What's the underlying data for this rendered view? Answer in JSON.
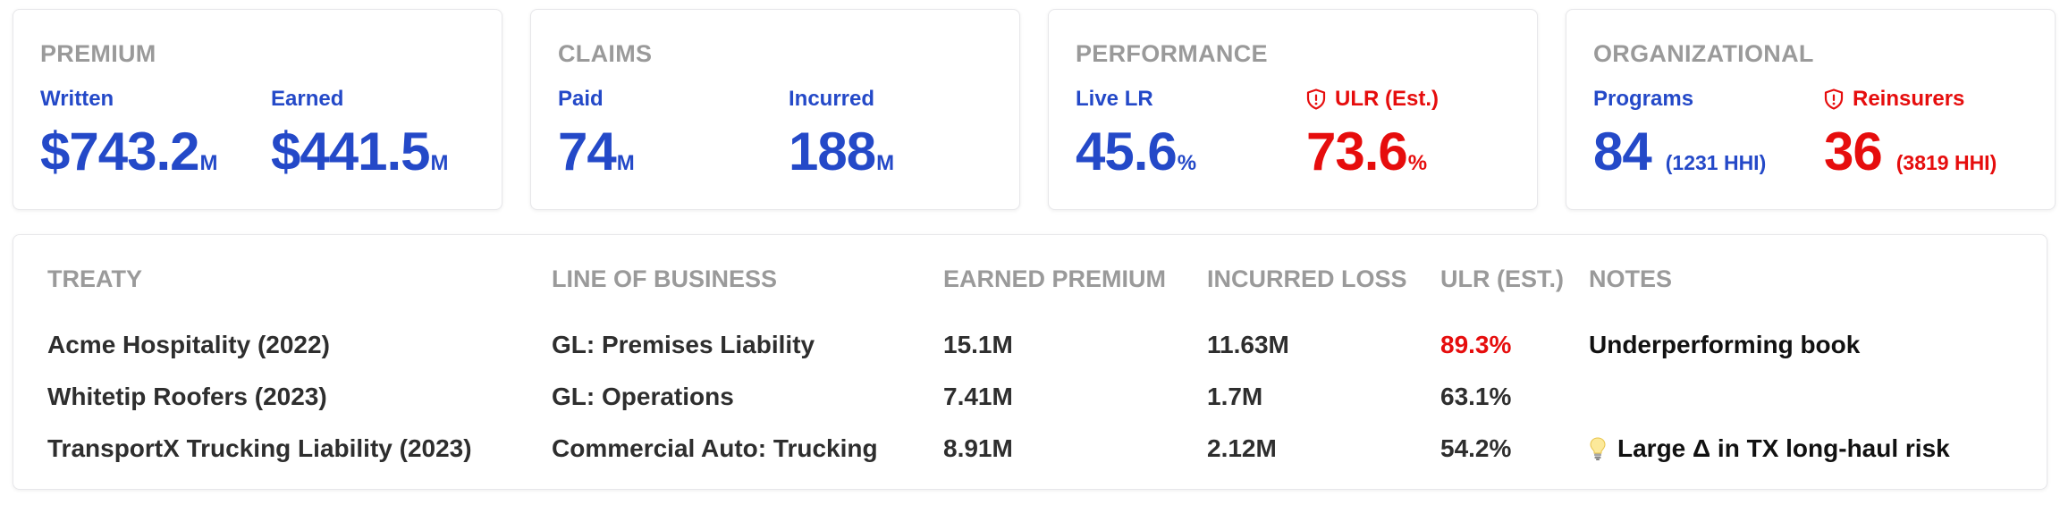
{
  "cards": {
    "premium": {
      "title": "PREMIUM",
      "written": {
        "label": "Written",
        "value": "$743.2",
        "unit": "M"
      },
      "earned": {
        "label": "Earned",
        "value": "$441.5",
        "unit": "M"
      }
    },
    "claims": {
      "title": "CLAIMS",
      "paid": {
        "label": "Paid",
        "value": "74",
        "unit": "M"
      },
      "incurred": {
        "label": "Incurred",
        "value": "188",
        "unit": "M"
      }
    },
    "performance": {
      "title": "PERFORMANCE",
      "live_lr": {
        "label": "Live LR",
        "value": "45.6",
        "unit": "%"
      },
      "ulr": {
        "label": "ULR (Est.)",
        "value": "73.6",
        "unit": "%",
        "icon": "shield-alert-icon"
      }
    },
    "organizational": {
      "title": "ORGANIZATIONAL",
      "programs": {
        "label": "Programs",
        "value": "84",
        "sub": "(1231 HHI)"
      },
      "reinsurers": {
        "label": "Reinsurers",
        "value": "36",
        "sub": "(3819 HHI)",
        "icon": "shield-alert-icon"
      }
    }
  },
  "table": {
    "columns": [
      "TREATY",
      "LINE OF BUSINESS",
      "EARNED PREMIUM",
      "INCURRED LOSS",
      "ULR (EST.)",
      "NOTES"
    ],
    "rows": [
      {
        "treaty": "Acme Hospitality (2022)",
        "lob": "GL: Premises Liability",
        "earned": "15.1M",
        "incurred": "11.63M",
        "ulr": "89.3%",
        "ulr_alert": true,
        "note": "Underperforming book",
        "note_icon": ""
      },
      {
        "treaty": "Whitetip Roofers (2023)",
        "lob": "GL: Operations",
        "earned": "7.41M",
        "incurred": "1.7M",
        "ulr": "63.1%",
        "ulr_alert": false,
        "note": "",
        "note_icon": ""
      },
      {
        "treaty": "TransportX Trucking Liability (2023)",
        "lob": "Commercial Auto: Trucking",
        "earned": "8.91M",
        "incurred": "2.12M",
        "ulr": "54.2%",
        "ulr_alert": false,
        "note": "Large Δ in TX long-haul risk",
        "note_icon": "lightbulb-icon"
      }
    ]
  },
  "colors": {
    "accent": "#2449c8",
    "alert": "#e60d0d",
    "muted": "#9a9a9a"
  }
}
